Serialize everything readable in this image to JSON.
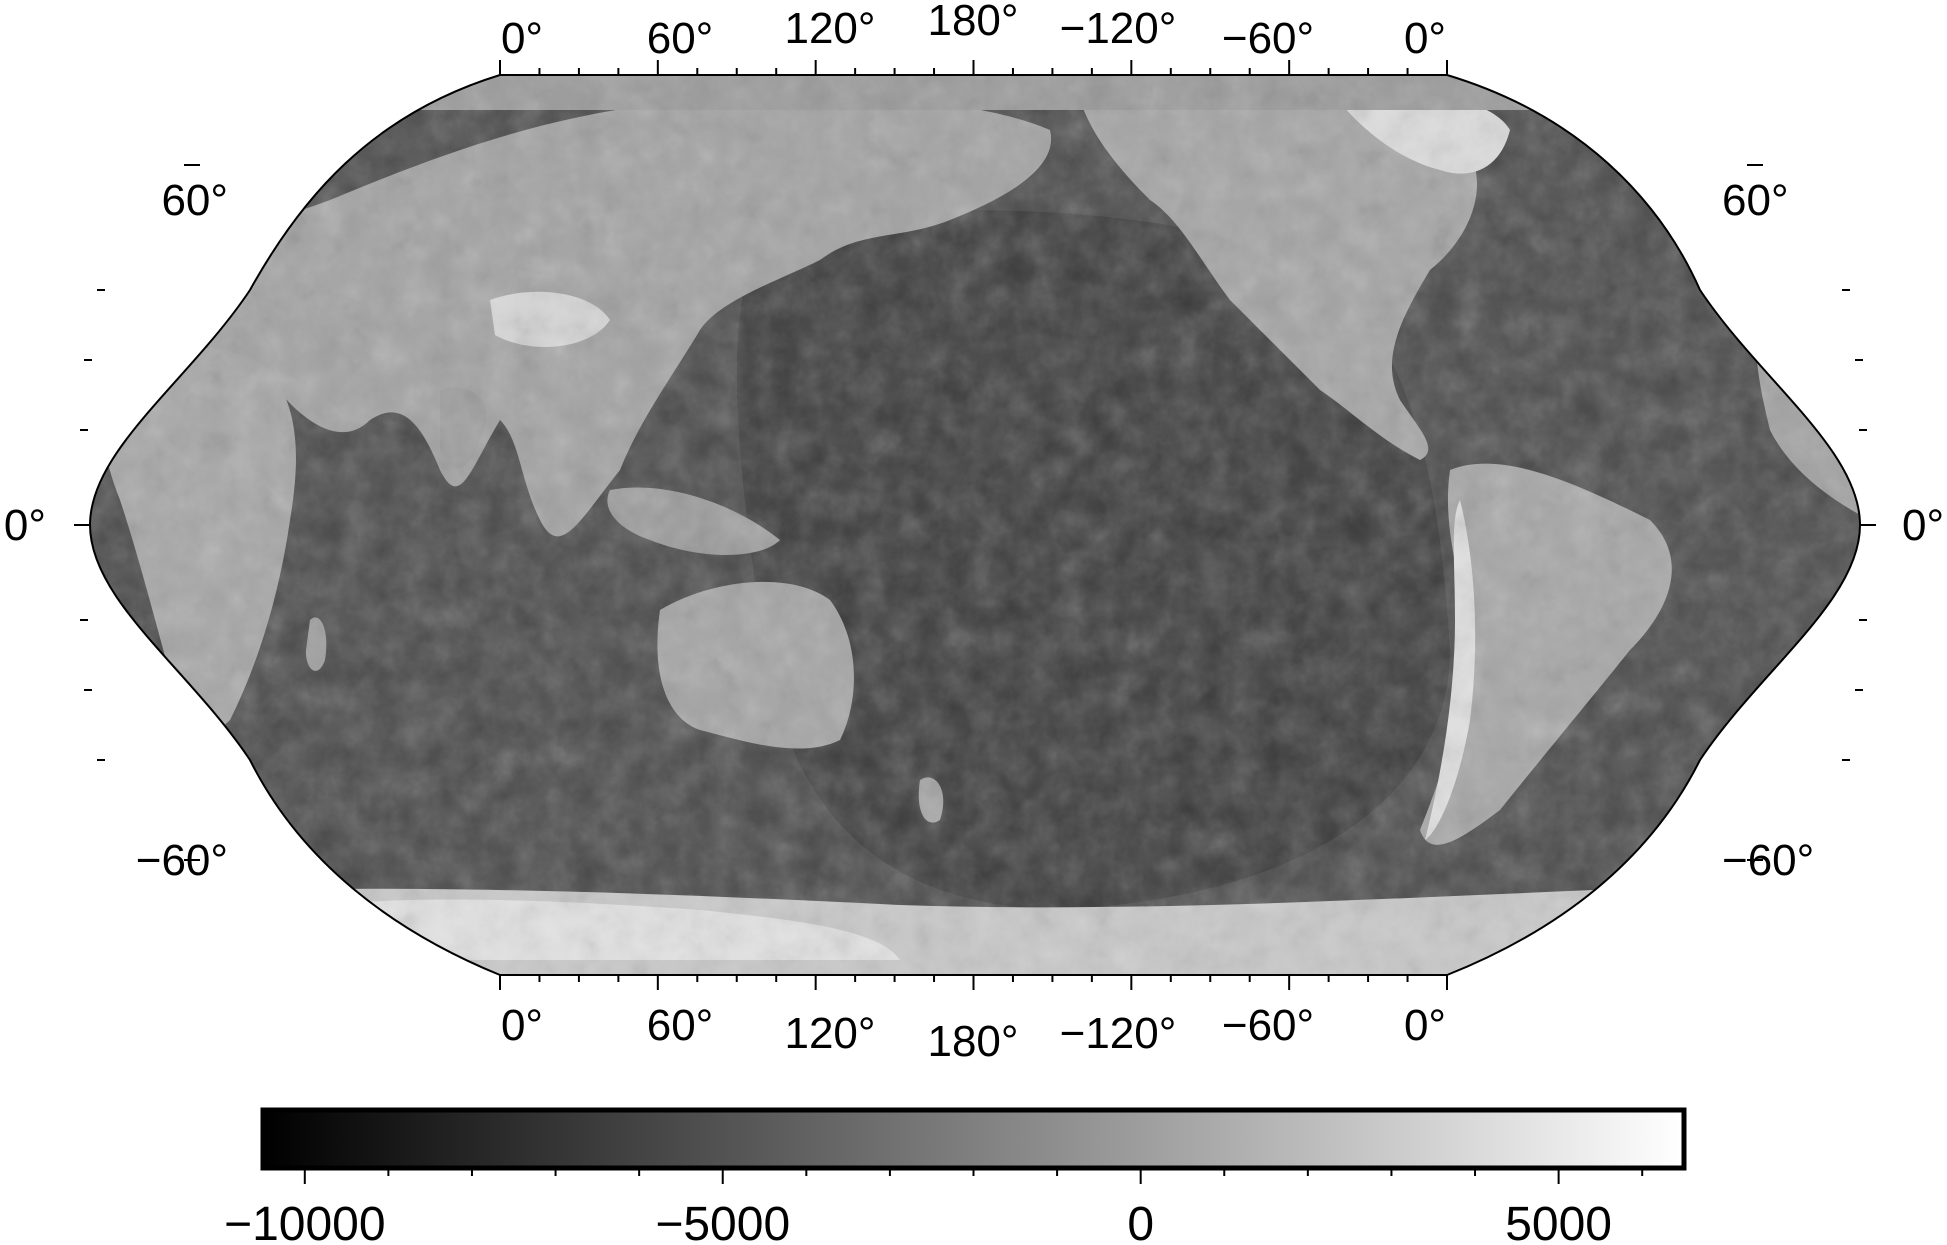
{
  "map": {
    "projection": "Robinson",
    "central_meridian": 180,
    "style": "grayscale shaded relief (topography and bathymetry)",
    "top_lon_labels": [
      "0°",
      "60°",
      "120°",
      "180°",
      "−120°",
      "−60°",
      "0°"
    ],
    "bottom_lon_labels": [
      "0°",
      "60°",
      "120°",
      "180°",
      "−120°",
      "−60°",
      "0°"
    ],
    "left_lat_labels": [
      "60°",
      "0°",
      "−60°"
    ],
    "right_lat_labels": [
      "60°",
      "0°",
      "−60°"
    ]
  },
  "colorbar": {
    "min": -10500,
    "max": 6500,
    "colors": [
      "#000000",
      "#ffffff"
    ],
    "tick_labels": [
      "−10000",
      "−5000",
      "0",
      "5000"
    ],
    "tick_values": [
      -10000,
      -5000,
      0,
      5000
    ],
    "minor_tick_values": [
      -9000,
      -8000,
      -7000,
      -6000,
      -4000,
      -3000,
      -2000,
      -1000,
      1000,
      2000,
      3000,
      4000,
      6000
    ]
  }
}
